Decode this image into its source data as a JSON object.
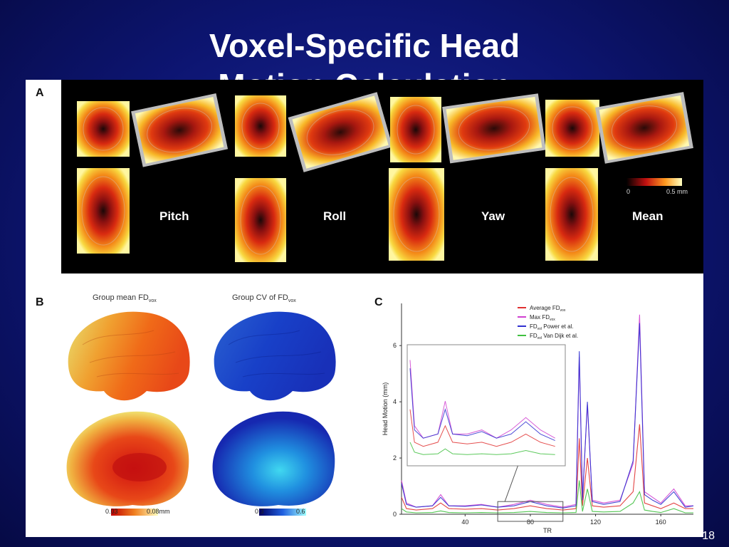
{
  "title": {
    "line1": "Voxel-Specific Head",
    "line2": "Motion Calculation"
  },
  "panel_letters": {
    "a": "A",
    "b": "B",
    "c": "C"
  },
  "panel_a": {
    "orientations": [
      "Pitch",
      "Roll",
      "Yaw",
      "Mean"
    ],
    "colorbar": {
      "min": "0",
      "max": "0.5 mm",
      "colors": [
        "#000000",
        "#d01010",
        "#ffd020",
        "#ffffc0"
      ]
    }
  },
  "panel_b": {
    "caption_mean": {
      "main": "Group mean FD",
      "sub": "vox"
    },
    "caption_cv": {
      "main": "Group CV of FD",
      "sub": "vox"
    },
    "colorbar_mean": {
      "min": "0.03",
      "max": "0.08mm"
    },
    "colorbar_cv": {
      "min": "0.3",
      "max": "0.6"
    }
  },
  "chart_data": {
    "type": "line",
    "xlabel": "TR",
    "ylabel": "Head Motion (mm)",
    "xlim": [
      1,
      180
    ],
    "ylim": [
      0,
      7.5
    ],
    "x_ticks": [
      40,
      80,
      120,
      160
    ],
    "y_ticks": [
      0,
      2,
      4,
      6
    ],
    "legend_placement": "top-right",
    "inset": {
      "x_range": [
        60,
        100
      ],
      "note": "zoom of TR 60-100"
    },
    "legend": [
      {
        "main": "Average FD",
        "sub": "vox",
        "suffix": ""
      },
      {
        "main": "Max FD",
        "sub": "vox",
        "suffix": ""
      },
      {
        "main": "FD",
        "sub": "vol",
        "suffix": " Power et al."
      },
      {
        "main": "FD",
        "sub": "vol",
        "suffix": " Van Dijk et al."
      }
    ],
    "series": [
      {
        "name": "Average FD vox",
        "color": "#e03030",
        "points": [
          [
            1,
            0.6
          ],
          [
            4,
            0.2
          ],
          [
            10,
            0.15
          ],
          [
            20,
            0.2
          ],
          [
            25,
            0.4
          ],
          [
            30,
            0.2
          ],
          [
            40,
            0.18
          ],
          [
            50,
            0.2
          ],
          [
            60,
            0.15
          ],
          [
            70,
            0.2
          ],
          [
            80,
            0.3
          ],
          [
            90,
            0.2
          ],
          [
            100,
            0.15
          ],
          [
            108,
            0.2
          ],
          [
            110,
            2.7
          ],
          [
            112,
            0.3
          ],
          [
            115,
            2.0
          ],
          [
            118,
            0.3
          ],
          [
            125,
            0.25
          ],
          [
            135,
            0.3
          ],
          [
            143,
            0.8
          ],
          [
            147,
            3.2
          ],
          [
            150,
            0.4
          ],
          [
            155,
            0.3
          ],
          [
            160,
            0.2
          ],
          [
            168,
            0.4
          ],
          [
            175,
            0.2
          ],
          [
            180,
            0.2
          ]
        ]
      },
      {
        "name": "Max FD vox",
        "color": "#d040d0",
        "points": [
          [
            1,
            1.2
          ],
          [
            4,
            0.4
          ],
          [
            10,
            0.25
          ],
          [
            20,
            0.3
          ],
          [
            25,
            0.7
          ],
          [
            30,
            0.3
          ],
          [
            40,
            0.3
          ],
          [
            50,
            0.35
          ],
          [
            60,
            0.25
          ],
          [
            70,
            0.35
          ],
          [
            80,
            0.5
          ],
          [
            90,
            0.35
          ],
          [
            100,
            0.25
          ],
          [
            108,
            0.35
          ],
          [
            110,
            5.6
          ],
          [
            112,
            0.6
          ],
          [
            115,
            3.9
          ],
          [
            118,
            0.5
          ],
          [
            125,
            0.4
          ],
          [
            135,
            0.5
          ],
          [
            143,
            1.8
          ],
          [
            147,
            7.1
          ],
          [
            150,
            0.8
          ],
          [
            155,
            0.6
          ],
          [
            160,
            0.4
          ],
          [
            168,
            0.9
          ],
          [
            175,
            0.3
          ],
          [
            180,
            0.3
          ]
        ]
      },
      {
        "name": "FD vol Power et al.",
        "color": "#3030d0",
        "points": [
          [
            1,
            1.1
          ],
          [
            4,
            0.35
          ],
          [
            10,
            0.25
          ],
          [
            20,
            0.3
          ],
          [
            25,
            0.6
          ],
          [
            30,
            0.3
          ],
          [
            40,
            0.28
          ],
          [
            50,
            0.33
          ],
          [
            60,
            0.25
          ],
          [
            70,
            0.3
          ],
          [
            80,
            0.45
          ],
          [
            90,
            0.3
          ],
          [
            100,
            0.22
          ],
          [
            108,
            0.3
          ],
          [
            110,
            5.8
          ],
          [
            112,
            0.5
          ],
          [
            115,
            4.0
          ],
          [
            118,
            0.45
          ],
          [
            125,
            0.35
          ],
          [
            135,
            0.45
          ],
          [
            143,
            1.9
          ],
          [
            147,
            6.8
          ],
          [
            150,
            0.7
          ],
          [
            155,
            0.5
          ],
          [
            160,
            0.35
          ],
          [
            168,
            0.8
          ],
          [
            175,
            0.25
          ],
          [
            180,
            0.3
          ]
        ]
      },
      {
        "name": "FD vol Van Dijk et al.",
        "color": "#40c040",
        "points": [
          [
            1,
            0.2
          ],
          [
            4,
            0.08
          ],
          [
            10,
            0.05
          ],
          [
            20,
            0.06
          ],
          [
            25,
            0.12
          ],
          [
            30,
            0.06
          ],
          [
            40,
            0.05
          ],
          [
            50,
            0.06
          ],
          [
            60,
            0.05
          ],
          [
            70,
            0.06
          ],
          [
            80,
            0.1
          ],
          [
            90,
            0.06
          ],
          [
            100,
            0.05
          ],
          [
            108,
            0.06
          ],
          [
            110,
            1.2
          ],
          [
            112,
            0.1
          ],
          [
            115,
            0.9
          ],
          [
            118,
            0.1
          ],
          [
            125,
            0.08
          ],
          [
            135,
            0.1
          ],
          [
            143,
            0.4
          ],
          [
            147,
            0.8
          ],
          [
            150,
            0.15
          ],
          [
            155,
            0.1
          ],
          [
            160,
            0.06
          ],
          [
            168,
            0.2
          ],
          [
            175,
            0.05
          ],
          [
            180,
            0.05
          ]
        ]
      }
    ]
  },
  "page_number": "18"
}
